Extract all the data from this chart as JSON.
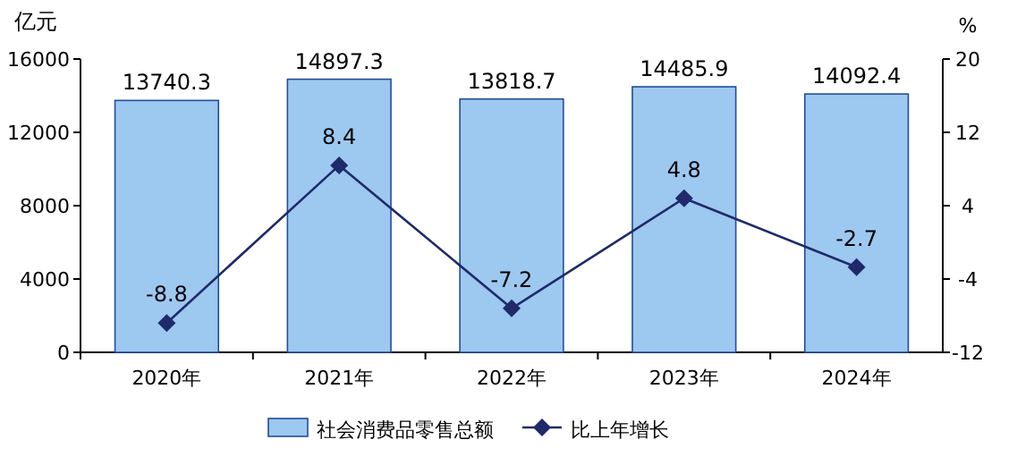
{
  "chart_data": {
    "type": "bar",
    "ylabel": "亿元",
    "y2label": "%",
    "categories": [
      "2020年",
      "2021年",
      "2022年",
      "2023年",
      "2024年"
    ],
    "series": [
      {
        "name": "社会消费品零售总额",
        "color": "#9dc8f0",
        "values": [
          13740.3,
          14897.3,
          13818.7,
          14485.9,
          14092.4
        ]
      },
      {
        "name": "比上年增长",
        "type": "line",
        "axis": "y2",
        "color": "#1f2a6b",
        "marker": "diamond",
        "values": [
          -8.8,
          8.4,
          -7.2,
          4.8,
          -2.7
        ]
      }
    ],
    "ylim": [
      0,
      16000
    ],
    "yticks": [
      0,
      4000,
      8000,
      12000,
      16000
    ],
    "y2lim": [
      -12,
      20
    ],
    "y2ticks": [
      -12,
      -4,
      4,
      12,
      20
    ],
    "data_labels": true,
    "legend": "bottom"
  }
}
